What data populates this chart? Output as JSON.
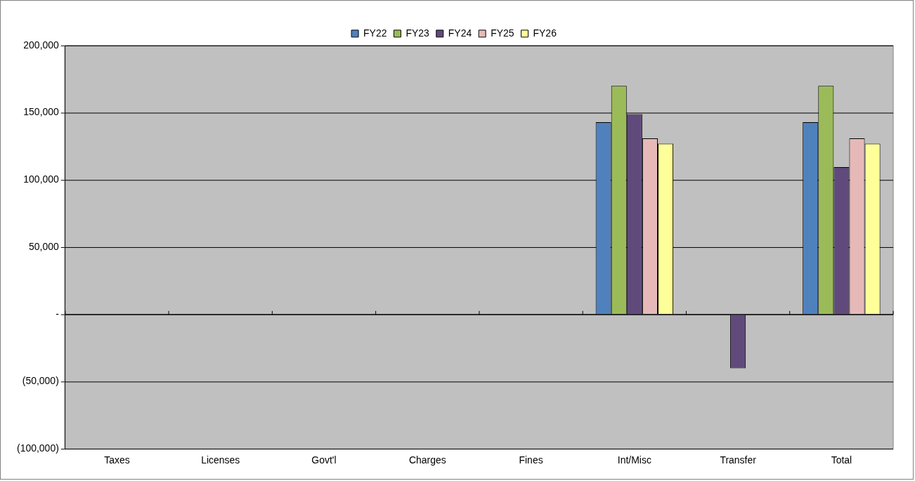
{
  "chart_data": {
    "type": "bar",
    "categories": [
      "Taxes",
      "Licenses",
      "Govt'l",
      "Charges",
      "Fines",
      "Int/Misc",
      "Transfer",
      "Total"
    ],
    "series": [
      {
        "name": "FY22",
        "color": "#4f81bd",
        "values": [
          0,
          0,
          0,
          0,
          0,
          143000,
          0,
          143000
        ]
      },
      {
        "name": "FY23",
        "color": "#9bbb59",
        "values": [
          0,
          0,
          0,
          0,
          0,
          170000,
          0,
          170000
        ]
      },
      {
        "name": "FY24",
        "color": "#604a7b",
        "values": [
          0,
          0,
          0,
          0,
          0,
          149000,
          -40000,
          109500
        ]
      },
      {
        "name": "FY25",
        "color": "#e6b9b8",
        "values": [
          0,
          0,
          0,
          0,
          0,
          131000,
          0,
          131000
        ]
      },
      {
        "name": "FY26",
        "color": "#ffff99",
        "values": [
          0,
          0,
          0,
          0,
          0,
          127000,
          0,
          127000
        ]
      }
    ],
    "ylim": [
      -100000,
      200000
    ],
    "yticks": [
      {
        "value": -100000,
        "label": "(100,000)"
      },
      {
        "value": -50000,
        "label": "(50,000)"
      },
      {
        "value": 0,
        "label": "-"
      },
      {
        "value": 50000,
        "label": "50,000"
      },
      {
        "value": 100000,
        "label": "100,000"
      },
      {
        "value": 150000,
        "label": "150,000"
      },
      {
        "value": 200000,
        "label": "200,000"
      }
    ],
    "grid": "y",
    "legend": "top"
  }
}
